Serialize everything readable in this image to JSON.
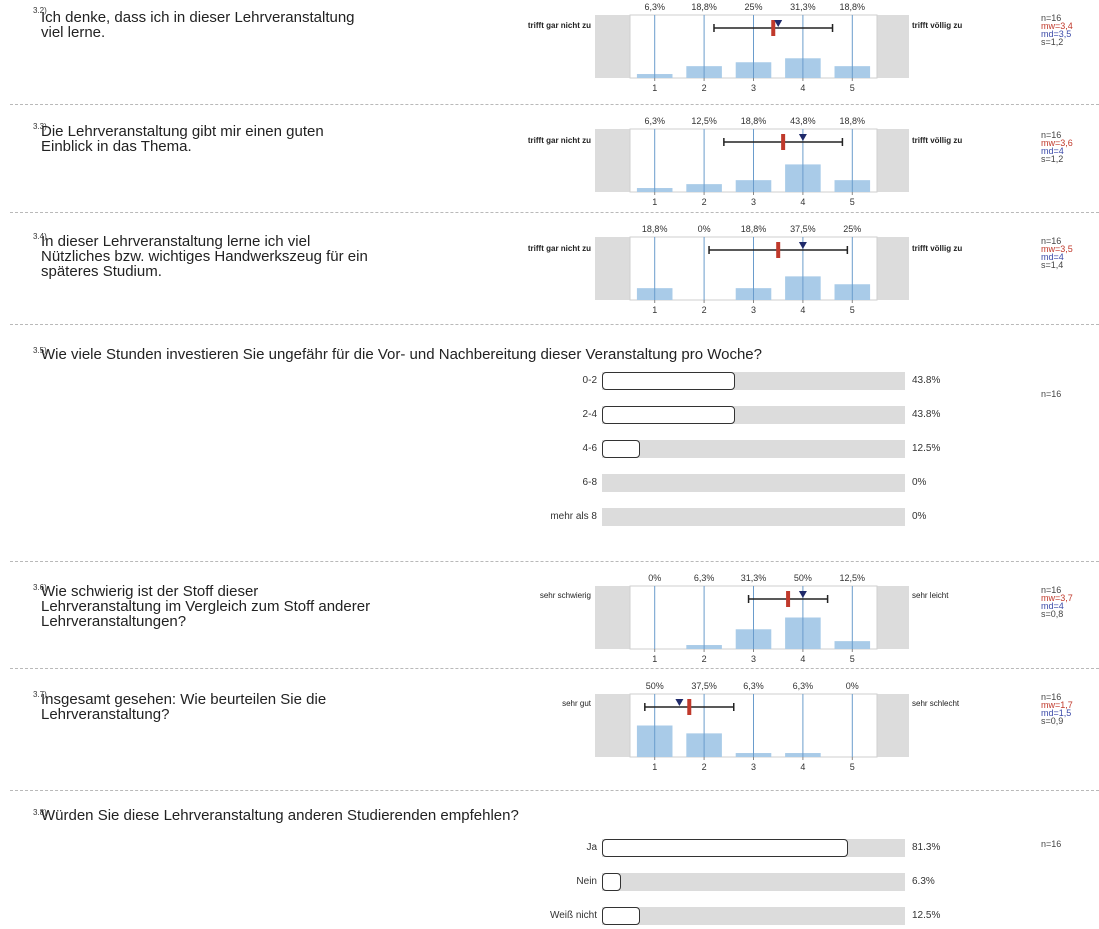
{
  "scale_items": [
    {
      "number": "3.2)",
      "question": [
        "Ich denke, dass ich in dieser Lehrveranstaltung",
        "viel lerne."
      ],
      "left_label": "trifft gar nicht zu",
      "right_label": "trifft völlig zu",
      "percents": [
        "6,3%",
        "18,8%",
        "25%",
        "31,3%",
        "18,8%"
      ],
      "values": [
        6.3,
        18.8,
        25,
        31.3,
        18.8
      ],
      "ticks": [
        "1",
        "2",
        "3",
        "4",
        "5"
      ],
      "mean": 3.4,
      "median": 3.5,
      "sd": 1.2,
      "stats": {
        "n": "n=16",
        "mw": "mw=3,4",
        "md": "md=3,5",
        "s": "s=1,2"
      }
    },
    {
      "number": "3.3)",
      "question": [
        "Die Lehrveranstaltung gibt mir einen guten",
        "Einblick in das Thema."
      ],
      "left_label": "trifft gar nicht zu",
      "right_label": "trifft völlig zu",
      "percents": [
        "6,3%",
        "12,5%",
        "18,8%",
        "43,8%",
        "18,8%"
      ],
      "values": [
        6.3,
        12.5,
        18.8,
        43.8,
        18.8
      ],
      "ticks": [
        "1",
        "2",
        "3",
        "4",
        "5"
      ],
      "mean": 3.6,
      "median": 4,
      "sd": 1.2,
      "stats": {
        "n": "n=16",
        "mw": "mw=3,6",
        "md": "md=4",
        "s": "s=1,2"
      }
    },
    {
      "number": "3.4)",
      "question": [
        "In dieser Lehrveranstaltung lerne ich viel",
        "Nützliches bzw. wichtiges Handwerkszeug für ein",
        "späteres Studium."
      ],
      "left_label": "trifft gar nicht zu",
      "right_label": "trifft völlig zu",
      "percents": [
        "18,8%",
        "0%",
        "18,8%",
        "37,5%",
        "25%"
      ],
      "values": [
        18.8,
        0,
        18.8,
        37.5,
        25
      ],
      "ticks": [
        "1",
        "2",
        "3",
        "4",
        "5"
      ],
      "mean": 3.5,
      "median": 4,
      "sd": 1.4,
      "stats": {
        "n": "n=16",
        "mw": "mw=3,5",
        "md": "md=4",
        "s": "s=1,4"
      }
    },
    {
      "number": "3.6)",
      "question": [
        "Wie schwierig ist der Stoff dieser",
        "Lehrveranstaltung im Vergleich zum Stoff anderer",
        "Lehrveranstaltungen?"
      ],
      "left_label": "sehr schwierig",
      "right_label": "sehr leicht",
      "percents": [
        "0%",
        "6,3%",
        "31,3%",
        "50%",
        "12,5%"
      ],
      "values": [
        0,
        6.3,
        31.3,
        50,
        12.5
      ],
      "ticks": [
        "1",
        "2",
        "3",
        "4",
        "5"
      ],
      "mean": 3.7,
      "median": 4,
      "sd": 0.8,
      "stats": {
        "n": "n=16",
        "mw": "mw=3,7",
        "md": "md=4",
        "s": "s=0,8"
      }
    },
    {
      "number": "3.7)",
      "question": [
        "Insgesamt gesehen: Wie beurteilen Sie die",
        "Lehrveranstaltung?"
      ],
      "left_label": "sehr gut",
      "right_label": "sehr schlecht",
      "percents": [
        "50%",
        "37,5%",
        "6,3%",
        "6,3%",
        "0%"
      ],
      "values": [
        50,
        37.5,
        6.3,
        6.3,
        0
      ],
      "ticks": [
        "1",
        "2",
        "3",
        "4",
        "5"
      ],
      "mean": 1.7,
      "median": 1.5,
      "sd": 0.9,
      "stats": {
        "n": "n=16",
        "mw": "mw=1,7",
        "md": "md=1,5",
        "s": "s=0,9"
      }
    }
  ],
  "bar_items": [
    {
      "number": "3.5)",
      "question": "Wie viele Stunden investieren Sie ungefähr für die Vor- und Nachbereitung dieser Veranstaltung pro Woche?",
      "n": "n=16",
      "rows": [
        {
          "label": "0-2",
          "value": 43.8,
          "pct": "43.8%"
        },
        {
          "label": "2-4",
          "value": 43.8,
          "pct": "43.8%"
        },
        {
          "label": "4-6",
          "value": 12.5,
          "pct": "12.5%"
        },
        {
          "label": "6-8",
          "value": 0,
          "pct": "0%"
        },
        {
          "label": "mehr als 8",
          "value": 0,
          "pct": "0%"
        }
      ]
    },
    {
      "number": "3.8)",
      "question": "Würden Sie diese Lehrveranstaltung anderen Studierenden empfehlen?",
      "n": "n=16",
      "rows": [
        {
          "label": "Ja",
          "value": 81.3,
          "pct": "81.3%"
        },
        {
          "label": "Nein",
          "value": 6.3,
          "pct": "6.3%"
        },
        {
          "label": "Weiß nicht",
          "value": 12.5,
          "pct": "12.5%"
        }
      ]
    }
  ],
  "colors": {
    "bar": "#a9cbe8",
    "side": "#dcdcdc",
    "gridline": "#6a9ccc",
    "mean_marker": "#c0392b",
    "median_marker": "#1f2a6b"
  },
  "chart_data": [
    {
      "type": "bar",
      "title": "3.2)",
      "categories": [
        "1",
        "2",
        "3",
        "4",
        "5"
      ],
      "values": [
        6.3,
        18.8,
        25,
        31.3,
        18.8
      ],
      "ylim": [
        0,
        100
      ]
    },
    {
      "type": "bar",
      "title": "3.3)",
      "categories": [
        "1",
        "2",
        "3",
        "4",
        "5"
      ],
      "values": [
        6.3,
        12.5,
        18.8,
        43.8,
        18.8
      ],
      "ylim": [
        0,
        100
      ]
    },
    {
      "type": "bar",
      "title": "3.4)",
      "categories": [
        "1",
        "2",
        "3",
        "4",
        "5"
      ],
      "values": [
        18.8,
        0,
        18.8,
        37.5,
        25
      ],
      "ylim": [
        0,
        100
      ]
    },
    {
      "type": "bar",
      "title": "3.5)",
      "categories": [
        "0-2",
        "2-4",
        "4-6",
        "6-8",
        "mehr als 8"
      ],
      "values": [
        43.8,
        43.8,
        12.5,
        0,
        0
      ],
      "ylim": [
        0,
        100
      ]
    },
    {
      "type": "bar",
      "title": "3.6)",
      "categories": [
        "1",
        "2",
        "3",
        "4",
        "5"
      ],
      "values": [
        0,
        6.3,
        31.3,
        50,
        12.5
      ],
      "ylim": [
        0,
        100
      ]
    },
    {
      "type": "bar",
      "title": "3.7)",
      "categories": [
        "1",
        "2",
        "3",
        "4",
        "5"
      ],
      "values": [
        50,
        37.5,
        6.3,
        6.3,
        0
      ],
      "ylim": [
        0,
        100
      ]
    },
    {
      "type": "bar",
      "title": "3.8)",
      "categories": [
        "Ja",
        "Nein",
        "Weiß nicht"
      ],
      "values": [
        81.3,
        6.3,
        12.5
      ],
      "ylim": [
        0,
        100
      ]
    }
  ]
}
